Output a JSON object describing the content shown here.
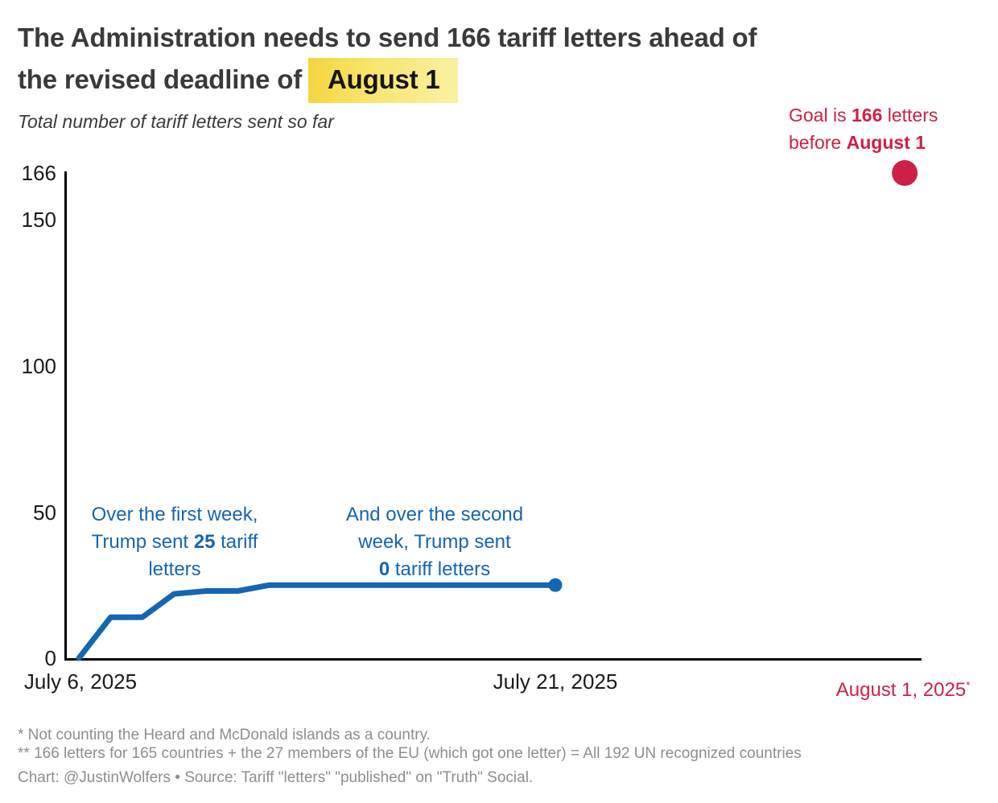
{
  "colors": {
    "line_blue": "#1566B0",
    "goal_red": "#CE2047",
    "title_gray": "#3A3A3A",
    "footnote_gray": "#8E8E8E",
    "highlight_yellow": "#F8E671",
    "axis_black": "#1B1B1B"
  },
  "header": {
    "title_line1": "The Administration needs to send 166 tariff letters ahead of",
    "title_line2": "the revised deadline of",
    "title_highlight": "August 1",
    "subtitle": "Total number of tariff letters sent so far"
  },
  "goal_annotation": {
    "line1_a": "Goal is ",
    "line1_b": "166",
    "line1_c": " letters",
    "line2_a": "before ",
    "line2_b": "August 1"
  },
  "callout_first_week": {
    "line1": "Over the first week,",
    "line2_a": "Trump sent ",
    "line2_b": "25",
    "line2_c": " tariff",
    "line3": "letters"
  },
  "callout_second_week": {
    "line1": "And over the second",
    "line2": "week, Trump sent",
    "line3_a": "0",
    "line3_b": " tariff letters"
  },
  "axis": {
    "y_ticks": [
      "166",
      "150",
      "100",
      "50",
      "0"
    ],
    "x_ticks": [
      {
        "label": "July 6, 2025"
      },
      {
        "label": "July 21, 2025"
      },
      {
        "label": "August 1, 2025",
        "marker": "*"
      }
    ]
  },
  "chart_data": {
    "type": "line",
    "title": "The Administration needs to send 166 tariff letters ahead of the revised deadline of August 1",
    "subtitle": "Total number of tariff letters sent so far",
    "x": [
      "July 6",
      "July 7",
      "July 8",
      "July 9",
      "July 10",
      "July 11",
      "July 12",
      "July 13",
      "July 14",
      "July 15",
      "July 16",
      "July 17",
      "July 18",
      "July 19",
      "July 20",
      "July 21"
    ],
    "values": [
      0,
      14,
      14,
      22,
      23,
      23,
      25,
      25,
      25,
      25,
      25,
      25,
      25,
      25,
      25,
      25
    ],
    "goal_point": {
      "label": "August 1",
      "day_offset": 26,
      "value": 166
    },
    "ylim": [
      0,
      166
    ],
    "y_tick_values": [
      0,
      50,
      100,
      150,
      166
    ],
    "x_axis_start": "July 6, 2025",
    "x_axis_end": "August 1, 2025",
    "legend": "none",
    "grid": false,
    "line_color": "#1566B0",
    "goal_color": "#CE2047",
    "annotations": [
      "Over the first week, Trump sent 25 tariff letters",
      "And over the second week, Trump sent 0 tariff letters",
      "Goal is 166 letters before August 1"
    ]
  },
  "footnotes": [
    "* Not counting the Heard and McDonald islands as a country.",
    "** 166 letters for 165 countries + the 27 members of the EU (which got one letter) = All 192 UN recognized countries"
  ],
  "credit": "Chart: @JustinWolfers • Source: Tariff \"letters\" \"published\" on \"Truth\" Social."
}
